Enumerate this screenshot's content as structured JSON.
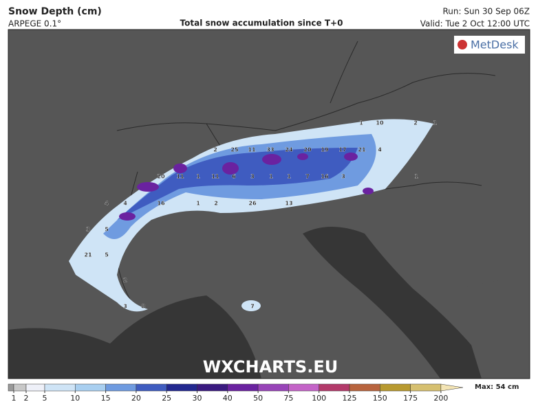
{
  "header": {
    "title": "Snow Depth (cm)",
    "model": "ARPEGE 0.1°",
    "subtitle": "Total snow accumulation since T+0",
    "run": "Run: Sun 30 Sep 06Z",
    "valid": "Valid: Tue 2 Oct 12:00 UTC"
  },
  "logo": "MetDesk",
  "watermark": "WXCHARTS.EU",
  "max_label": "Max: 54 cm",
  "colorbar": {
    "ticks": [
      1,
      2,
      5,
      10,
      15,
      20,
      25,
      30,
      40,
      50,
      75,
      100,
      125,
      150,
      175,
      200
    ],
    "colors": [
      "#c8c8c8",
      "#eef0f8",
      "#cfe4f6",
      "#a9cff0",
      "#6f9be0",
      "#3f5cc0",
      "#22288f",
      "#3a1a80",
      "#6a22a0",
      "#9844b8",
      "#c464c8",
      "#b33a6a",
      "#b8643e",
      "#b89a30",
      "#d6c070",
      "#f3e4b4"
    ]
  },
  "map_labels": [
    1,
    10,
    2,
    1,
    2,
    25,
    11,
    33,
    24,
    20,
    19,
    17,
    21,
    4,
    20,
    11,
    1,
    11,
    6,
    3,
    1,
    1,
    7,
    16,
    3,
    1,
    4,
    4,
    16,
    1,
    2,
    26,
    13,
    3,
    5,
    21,
    5,
    2,
    3,
    8,
    7
  ]
}
